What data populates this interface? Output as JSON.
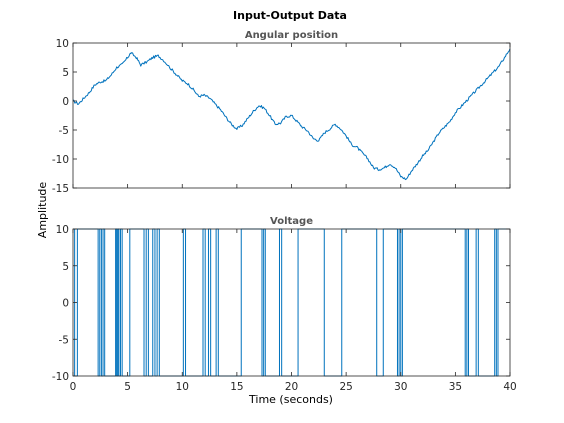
{
  "figure": {
    "title": "Input-Output Data",
    "ylabel": "Amplitude",
    "xlabel": "Time (seconds)",
    "line_color": "#0072BD"
  },
  "chart_data": [
    {
      "type": "line",
      "title": "Angular position",
      "xlim": [
        0,
        40
      ],
      "ylim": [
        -15,
        10
      ],
      "xticks": [
        0,
        5,
        10,
        15,
        20,
        25,
        30,
        35,
        40
      ],
      "yticks": [
        10,
        5,
        0,
        -5,
        -10,
        -15
      ],
      "show_xtick_labels": false,
      "x": [
        0,
        0.5,
        1,
        1.5,
        2,
        2.5,
        3,
        3.5,
        4,
        4.5,
        5,
        5.3,
        5.8,
        6.2,
        6.8,
        7.3,
        7.8,
        8.3,
        9,
        9.5,
        10,
        10.5,
        11,
        11.5,
        12,
        12.5,
        13,
        13.5,
        14,
        14.5,
        15,
        15.5,
        16,
        16.5,
        17,
        17.5,
        18,
        18.5,
        19,
        19.5,
        20,
        20.5,
        21,
        21.5,
        22,
        22.5,
        23,
        23.5,
        24,
        24.5,
        25,
        25.5,
        26,
        26.5,
        27,
        27.5,
        28,
        28.5,
        29,
        29.5,
        30,
        30.5,
        31,
        31.5,
        32,
        32.5,
        33,
        33.5,
        34,
        34.5,
        35,
        35.5,
        36,
        36.5,
        37,
        37.5,
        38,
        38.5,
        39,
        39.5,
        40
      ],
      "y": [
        0,
        -0.5,
        0.5,
        1.5,
        2.8,
        3.3,
        3.5,
        4.5,
        5.8,
        6.3,
        7.5,
        8.3,
        7.5,
        6.2,
        6.8,
        7.5,
        7.8,
        7.0,
        5.5,
        4.5,
        3.5,
        3.0,
        2.0,
        0.8,
        1.0,
        0.5,
        -0.5,
        -1.5,
        -2.8,
        -4.0,
        -4.8,
        -4.2,
        -3.0,
        -1.8,
        -0.8,
        -1.2,
        -2.5,
        -4.0,
        -3.8,
        -2.7,
        -2.5,
        -3.5,
        -4.5,
        -5.2,
        -6.5,
        -6.8,
        -5.5,
        -4.8,
        -4.0,
        -4.8,
        -6.0,
        -7.5,
        -8.0,
        -9.0,
        -10.0,
        -11.5,
        -11.8,
        -11.5,
        -10.8,
        -11.5,
        -13.0,
        -13.5,
        -12.0,
        -10.8,
        -9.5,
        -8.5,
        -7.0,
        -5.5,
        -4.5,
        -3.5,
        -2.0,
        -1.0,
        0.0,
        1.0,
        2.0,
        3.0,
        4.0,
        5.0,
        6.0,
        7.5,
        9.0
      ]
    },
    {
      "type": "line",
      "title": "Voltage",
      "xlim": [
        0,
        40
      ],
      "ylim": [
        -10,
        10
      ],
      "xticks": [
        0,
        5,
        10,
        15,
        20,
        25,
        30,
        35,
        40
      ],
      "yticks": [
        10,
        5,
        0,
        -5,
        -10
      ],
      "show_xtick_labels": true,
      "signal": "binary switching between -10 and 10",
      "low": -10,
      "high": 10,
      "switch_times": [
        0.15,
        0.4,
        2.3,
        2.45,
        2.6,
        2.75,
        2.9,
        3.9,
        4.0,
        4.1,
        4.2,
        4.35,
        4.5,
        5.2,
        6.5,
        6.7,
        6.9,
        7.3,
        7.5,
        7.7,
        7.9,
        10.1,
        10.3,
        11.9,
        12.1,
        12.4,
        12.6,
        13.1,
        13.3,
        15.4,
        17.3,
        17.45,
        17.6,
        18.9,
        19.1,
        20.6,
        23.0,
        24.6,
        27.8,
        28.4,
        29.7,
        29.85,
        30.0,
        30.15,
        35.9,
        36.05,
        36.2,
        36.9,
        37.1,
        38.6,
        38.75,
        38.9
      ]
    }
  ]
}
